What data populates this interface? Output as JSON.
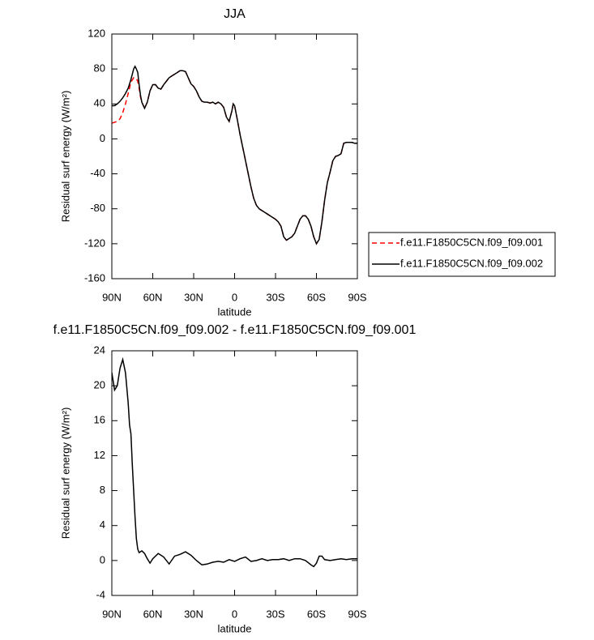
{
  "chart_data": [
    {
      "type": "line",
      "title": "JJA",
      "xlabel": "latitude",
      "ylabel": "Residual surf energy (W/m²)",
      "x": [
        90,
        88,
        86,
        84,
        82,
        80,
        78,
        76,
        74,
        73,
        72,
        71,
        70,
        69,
        68,
        66,
        64,
        62,
        60,
        58,
        56,
        54,
        52,
        50,
        48,
        46,
        44,
        42,
        40,
        38,
        36,
        34,
        32,
        30,
        28,
        26,
        24,
        22,
        20,
        18,
        16,
        14,
        12,
        10,
        8,
        6,
        4,
        2,
        1,
        0,
        -2,
        -4,
        -6,
        -8,
        -10,
        -12,
        -14,
        -16,
        -18,
        -20,
        -22,
        -24,
        -26,
        -28,
        -30,
        -32,
        -34,
        -36,
        -38,
        -40,
        -42,
        -44,
        -46,
        -48,
        -50,
        -52,
        -54,
        -56,
        -58,
        -60,
        -62,
        -64,
        -66,
        -68,
        -70,
        -72,
        -74,
        -76,
        -78,
        -80,
        -82,
        -84,
        -86,
        -88,
        -90
      ],
      "series": [
        {
          "name": "f.e11.F1850C5CN.f09_f09.001",
          "color": "#ff0000",
          "dash": true,
          "values": [
            18,
            19,
            20,
            23,
            30,
            40,
            52,
            65,
            70,
            70,
            69,
            66,
            58,
            48,
            42,
            35,
            42,
            55,
            62,
            62,
            58,
            57,
            62,
            66,
            70,
            72,
            74,
            76,
            78,
            78,
            77,
            70,
            63,
            60,
            55,
            48,
            43,
            42,
            42,
            41,
            42,
            40,
            42,
            40,
            36,
            25,
            20,
            32,
            40,
            38,
            22,
            5,
            -10,
            -25,
            -40,
            -55,
            -68,
            -76,
            -80,
            -82,
            -84,
            -86,
            -88,
            -90,
            -92,
            -95,
            -100,
            -112,
            -116,
            -114,
            -112,
            -108,
            -100,
            -92,
            -88,
            -88,
            -92,
            -100,
            -112,
            -120,
            -115,
            -95,
            -70,
            -50,
            -38,
            -25,
            -20,
            -19,
            -17,
            -5,
            -4,
            -4,
            -4,
            -5,
            -5
          ]
        },
        {
          "name": "f.e11.F1850C5CN.f09_f09.002",
          "color": "#000000",
          "dash": false,
          "values": [
            38,
            38,
            40,
            43,
            47,
            52,
            58,
            68,
            80,
            83,
            80,
            76,
            62,
            50,
            42,
            35,
            42,
            55,
            62,
            62,
            58,
            57,
            62,
            66,
            70,
            72,
            74,
            76,
            78,
            78,
            77,
            70,
            63,
            60,
            55,
            48,
            43,
            42,
            42,
            41,
            42,
            40,
            42,
            40,
            36,
            25,
            20,
            32,
            40,
            38,
            22,
            5,
            -10,
            -25,
            -40,
            -55,
            -68,
            -76,
            -80,
            -82,
            -84,
            -86,
            -88,
            -90,
            -92,
            -95,
            -100,
            -112,
            -116,
            -114,
            -112,
            -108,
            -100,
            -92,
            -88,
            -88,
            -92,
            -100,
            -112,
            -120,
            -115,
            -95,
            -70,
            -50,
            -38,
            -25,
            -20,
            -19,
            -17,
            -5,
            -4,
            -4,
            -4,
            -5,
            -5
          ]
        }
      ],
      "xlim": [
        90,
        -90
      ],
      "xticks": [
        {
          "value": 90,
          "label": "90N"
        },
        {
          "value": 60,
          "label": "60N"
        },
        {
          "value": 30,
          "label": "30N"
        },
        0,
        {
          "value": -30,
          "label": "30S"
        },
        {
          "value": -60,
          "label": "60S"
        },
        {
          "value": -90,
          "label": "90S"
        }
      ],
      "ylim": [
        -160,
        120
      ],
      "yticks": [
        -160,
        -120,
        -80,
        -40,
        0,
        40,
        80,
        120
      ],
      "legend": "right"
    },
    {
      "type": "line",
      "title": "f.e11.F1850C5CN.f09_f09.002 - f.e11.F1850C5CN.f09_f09.001",
      "xlabel": "latitude",
      "ylabel": "Residual surf energy (W/m²)",
      "x": [
        90,
        88,
        86,
        84,
        82,
        80,
        78,
        77,
        76,
        75,
        74,
        73,
        72,
        71,
        70,
        68,
        66,
        64,
        62,
        60,
        56,
        52,
        48,
        44,
        40,
        36,
        32,
        28,
        24,
        20,
        16,
        12,
        8,
        4,
        0,
        -4,
        -8,
        -12,
        -16,
        -20,
        -24,
        -28,
        -32,
        -36,
        -40,
        -44,
        -48,
        -52,
        -56,
        -58,
        -60,
        -62,
        -64,
        -66,
        -70,
        -74,
        -78,
        -82,
        -86,
        -90
      ],
      "series": [
        {
          "color": "#000000",
          "dash": false,
          "values": [
            21.5,
            19.5,
            20,
            22,
            23,
            21.5,
            18,
            15.5,
            14.5,
            11,
            8,
            5,
            2.5,
            1.3,
            0.9,
            1.1,
            0.8,
            0.2,
            -0.3,
            0.2,
            0.8,
            0.4,
            -0.4,
            0.5,
            0.7,
            1.0,
            0.6,
            0.0,
            -0.5,
            -0.4,
            -0.2,
            -0.1,
            -0.2,
            0.1,
            -0.1,
            0.2,
            0.4,
            -0.1,
            0,
            0.2,
            0,
            0.1,
            0.1,
            0.2,
            0,
            0.2,
            0.2,
            0,
            -0.5,
            -0.7,
            -0.3,
            0.5,
            0.5,
            0.1,
            0,
            0.1,
            0.2,
            0.1,
            0.2,
            0.2
          ]
        }
      ],
      "xlim": [
        90,
        -90
      ],
      "xticks": [
        {
          "value": 90,
          "label": "90N"
        },
        {
          "value": 60,
          "label": "60N"
        },
        {
          "value": 30,
          "label": "30N"
        },
        0,
        {
          "value": -30,
          "label": "30S"
        },
        {
          "value": -60,
          "label": "60S"
        },
        {
          "value": -90,
          "label": "90S"
        }
      ],
      "ylim": [
        -4,
        24
      ],
      "yticks": [
        -4,
        0,
        4,
        8,
        12,
        16,
        20,
        24
      ]
    }
  ]
}
